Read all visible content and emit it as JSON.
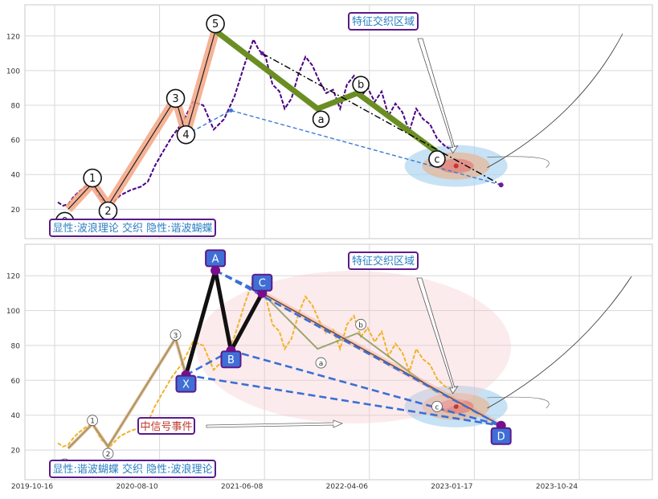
{
  "chart_data": [
    {
      "type": "line",
      "panel": "top",
      "ylim": [
        3,
        138
      ],
      "y_ticks": [
        20,
        40,
        60,
        80,
        100,
        120
      ],
      "grid": true,
      "price_series": {
        "color": "#4b0082",
        "x": [
          0.0,
          0.3,
          0.6,
          0.9,
          1.2,
          1.6,
          2.0,
          2.5,
          3.0,
          3.6,
          4.2,
          4.8,
          5.2,
          5.6,
          6.0,
          6.6,
          7.2,
          7.8,
          8.4,
          9.0,
          9.6,
          10.2,
          10.8,
          11.3,
          11.6,
          12.0,
          12.4,
          12.8,
          13.1,
          13.5,
          13.9,
          14.3,
          14.7,
          15.1,
          15.5,
          15.9,
          16.3,
          16.7,
          17.1,
          17.5,
          17.9,
          18.3,
          18.7,
          19.1,
          19.5,
          19.9,
          20.3,
          20.7,
          21.1,
          21.5,
          21.9,
          22.3,
          22.6
        ],
        "y": [
          24,
          22,
          23,
          27,
          30,
          33,
          35,
          26,
          22,
          28,
          31,
          33,
          36,
          45,
          52,
          62,
          70,
          82,
          80,
          66,
          72,
          85,
          104,
          118,
          112,
          108,
          92,
          88,
          78,
          84,
          98,
          108,
          103,
          94,
          87,
          89,
          78,
          92,
          97,
          85,
          90,
          82,
          88,
          74,
          81,
          76,
          65,
          78,
          72,
          69,
          61,
          57,
          55
        ]
      },
      "wave_labels": [
        "0",
        "1",
        "2",
        "3",
        "4",
        "5",
        "a",
        "b",
        "c"
      ],
      "wave_points": [
        [
          0.4,
          13
        ],
        [
          2.0,
          38
        ],
        [
          2.9,
          19
        ],
        [
          6.8,
          84
        ],
        [
          7.4,
          63
        ],
        [
          9.1,
          127
        ],
        [
          15.2,
          72
        ],
        [
          17.5,
          92
        ],
        [
          21.9,
          49
        ]
      ],
      "motive_path": [
        [
          0.6,
          20
        ],
        [
          2.0,
          35
        ],
        [
          2.9,
          22
        ],
        [
          6.8,
          84
        ],
        [
          7.4,
          63
        ],
        [
          9.1,
          123
        ]
      ],
      "corrective_path": [
        [
          9.1,
          123
        ],
        [
          15.0,
          78
        ],
        [
          17.3,
          87
        ],
        [
          21.9,
          53
        ]
      ],
      "butterfly_lines": [
        {
          "style": "dash",
          "color": "#3a7bd5",
          "from": [
            7.4,
            63
          ],
          "to": [
            10.0,
            77
          ]
        },
        {
          "style": "dash",
          "color": "#3a7bd5",
          "from": [
            10.0,
            77
          ],
          "to": [
            25.6,
            34
          ]
        },
        {
          "style": "dashdot",
          "color": "#000000",
          "from": [
            11.8,
            110
          ],
          "to": [
            25.6,
            34
          ]
        }
      ],
      "endpoint": [
        25.6,
        34
      ],
      "zone_label": "特征交织区域",
      "zone_center": [
        23.0,
        45
      ],
      "caption": "显性:波浪理论 交织 隐性:谐波蝴蝶"
    },
    {
      "type": "line",
      "panel": "bottom",
      "ylim": [
        3,
        138
      ],
      "y_ticks": [
        20,
        40,
        60,
        80,
        100,
        120
      ],
      "grid": true,
      "x_tick_labels": [
        "2019-10-16",
        "2020-08-10",
        "2021-06-08",
        "2022-04-06",
        "2023-01-17",
        "2023-10-24"
      ],
      "price_series": {
        "color": "#f0b429",
        "x": [
          0.0,
          0.3,
          0.6,
          0.9,
          1.2,
          1.6,
          2.0,
          2.5,
          3.0,
          3.6,
          4.2,
          4.8,
          5.2,
          5.6,
          6.0,
          6.6,
          7.2,
          7.8,
          8.4,
          9.0,
          9.6,
          10.2,
          10.8,
          11.3,
          11.6,
          12.0,
          12.4,
          12.8,
          13.1,
          13.5,
          13.9,
          14.3,
          14.7,
          15.1,
          15.5,
          15.9,
          16.3,
          16.7,
          17.1,
          17.5,
          17.9,
          18.3,
          18.7,
          19.1,
          19.5,
          19.9,
          20.3,
          20.7,
          21.1,
          21.5,
          21.9,
          22.3,
          22.6
        ],
        "y": [
          24,
          22,
          23,
          27,
          30,
          33,
          35,
          26,
          22,
          28,
          31,
          33,
          36,
          45,
          52,
          62,
          70,
          82,
          80,
          66,
          72,
          85,
          104,
          118,
          112,
          108,
          92,
          88,
          78,
          84,
          98,
          108,
          103,
          94,
          87,
          89,
          78,
          92,
          97,
          85,
          90,
          82,
          88,
          74,
          81,
          76,
          65,
          78,
          72,
          69,
          61,
          57,
          55
        ]
      },
      "wave_labels": [
        "0",
        "1",
        "2",
        "3",
        "a",
        "b",
        "c"
      ],
      "wave_points": [
        [
          0.4,
          12
        ],
        [
          2.0,
          37
        ],
        [
          2.9,
          18
        ],
        [
          6.8,
          86
        ],
        [
          15.2,
          70
        ],
        [
          17.5,
          92
        ],
        [
          21.9,
          45
        ]
      ],
      "harmonic_labels": [
        "X",
        "A",
        "B",
        "C",
        "D"
      ],
      "harmonic_points": [
        [
          7.4,
          63
        ],
        [
          9.1,
          123
        ],
        [
          10.0,
          77
        ],
        [
          11.8,
          110
        ],
        [
          25.6,
          34
        ]
      ],
      "harmonic_label_anchor": [
        [
          7.4,
          58
        ],
        [
          9.1,
          130
        ],
        [
          10.0,
          72
        ],
        [
          11.8,
          116
        ],
        [
          25.6,
          28
        ]
      ],
      "wave_path": [
        [
          0.6,
          21
        ],
        [
          2.0,
          35
        ],
        [
          2.9,
          22
        ],
        [
          6.8,
          84
        ],
        [
          7.4,
          63
        ],
        [
          9.1,
          123
        ],
        [
          10.0,
          77
        ],
        [
          11.8,
          110
        ],
        [
          15.0,
          78
        ],
        [
          17.3,
          87
        ],
        [
          21.9,
          53
        ]
      ],
      "event_label": "中信号事件",
      "zone_label": "特征交织区域",
      "zone_center": [
        23.0,
        45
      ],
      "caption": "显性:谐波蝴蝶 交织 隐性:波浪理论"
    }
  ],
  "colors": {
    "zone_text": "#2a7fc2",
    "label_border": "#5b1a8b",
    "event_text": "#c0392b",
    "harmonic_box": "#3f6fd6",
    "harmonic_node": "#7a0d8c",
    "wave_green": "#6b8e23",
    "wave_salmon": "#f4a582"
  }
}
